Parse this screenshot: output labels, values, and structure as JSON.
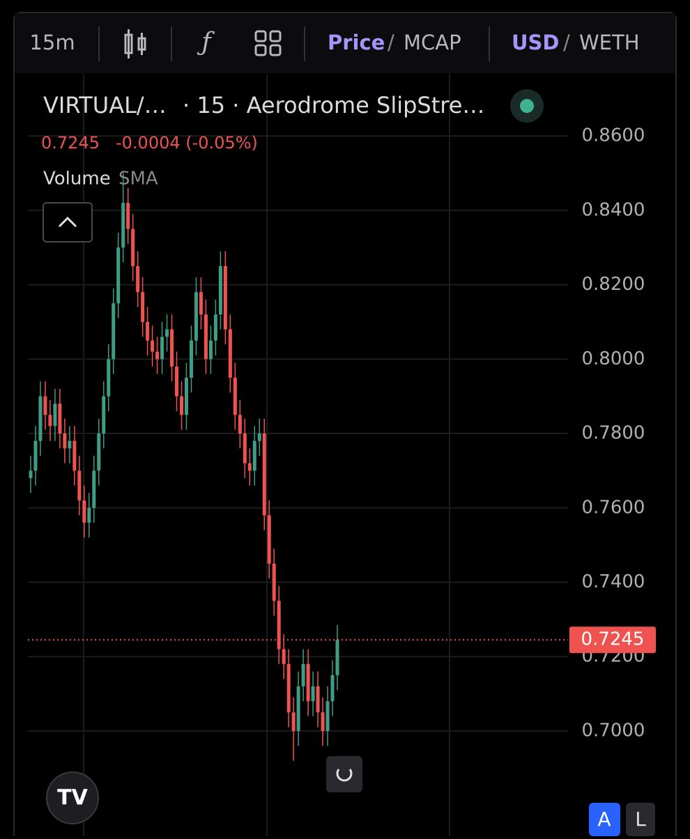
{
  "toolbar": {
    "interval": "15m",
    "price": "Price",
    "price_sep": "/",
    "mcap": "MCAP",
    "usd": "USD",
    "usd_sep": "/",
    "weth": "WETH"
  },
  "chart_data": {
    "type": "candlestick",
    "symbol": "VIRTUAL/…",
    "source": "· 15 · Aerodrome SlipStre…",
    "last": 0.7245,
    "change": "-0.0004 (-0.05%)",
    "indicator": "Volume",
    "indicator_param": "SMA",
    "up_color": "#3f9d86",
    "down_color": "#ef5350",
    "ylim": [
      0.6717,
      0.8767
    ],
    "yticks": [
      {
        "value": 0.86,
        "label": "0.8600"
      },
      {
        "value": 0.84,
        "label": "0.8400"
      },
      {
        "value": 0.82,
        "label": "0.8200"
      },
      {
        "value": 0.8,
        "label": "0.8000"
      },
      {
        "value": 0.78,
        "label": "0.7800"
      },
      {
        "value": 0.76,
        "label": "0.7600"
      },
      {
        "value": 0.74,
        "label": "0.7400"
      },
      {
        "value": 0.72,
        "label": "0.7200"
      },
      {
        "value": 0.7,
        "label": "0.7000"
      }
    ],
    "grid": true,
    "open": [
      0.768,
      0.77,
      0.778,
      0.79,
      0.785,
      0.782,
      0.788,
      0.78,
      0.776,
      0.778,
      0.77,
      0.762,
      0.756,
      0.76,
      0.77,
      0.78,
      0.79,
      0.8,
      0.815,
      0.83,
      0.842,
      0.835,
      0.825,
      0.818,
      0.81,
      0.805,
      0.802,
      0.8,
      0.806,
      0.808,
      0.798,
      0.79,
      0.785,
      0.795,
      0.805,
      0.818,
      0.812,
      0.8,
      0.805,
      0.812,
      0.825,
      0.808,
      0.795,
      0.785,
      0.78,
      0.772,
      0.77,
      0.778,
      0.78,
      0.758,
      0.745,
      0.735,
      0.722,
      0.718,
      0.705,
      0.7,
      0.712,
      0.718,
      0.708,
      0.712,
      0.705,
      0.7,
      0.708,
      0.715
    ],
    "high": [
      0.774,
      0.782,
      0.794,
      0.794,
      0.789,
      0.792,
      0.792,
      0.784,
      0.782,
      0.782,
      0.774,
      0.766,
      0.764,
      0.774,
      0.784,
      0.794,
      0.804,
      0.819,
      0.834,
      0.85,
      0.846,
      0.839,
      0.829,
      0.822,
      0.814,
      0.809,
      0.806,
      0.81,
      0.812,
      0.812,
      0.802,
      0.794,
      0.799,
      0.809,
      0.822,
      0.822,
      0.816,
      0.809,
      0.816,
      0.829,
      0.829,
      0.812,
      0.799,
      0.789,
      0.784,
      0.776,
      0.782,
      0.784,
      0.784,
      0.762,
      0.749,
      0.739,
      0.726,
      0.722,
      0.709,
      0.716,
      0.722,
      0.722,
      0.716,
      0.716,
      0.709,
      0.712,
      0.719,
      0.7285
    ],
    "low": [
      0.764,
      0.766,
      0.774,
      0.781,
      0.778,
      0.778,
      0.776,
      0.772,
      0.772,
      0.766,
      0.758,
      0.752,
      0.752,
      0.756,
      0.766,
      0.776,
      0.786,
      0.796,
      0.811,
      0.826,
      0.831,
      0.821,
      0.814,
      0.806,
      0.801,
      0.798,
      0.796,
      0.796,
      0.802,
      0.794,
      0.786,
      0.781,
      0.781,
      0.791,
      0.801,
      0.808,
      0.796,
      0.796,
      0.801,
      0.808,
      0.804,
      0.791,
      0.781,
      0.776,
      0.768,
      0.766,
      0.766,
      0.774,
      0.754,
      0.741,
      0.731,
      0.718,
      0.714,
      0.701,
      0.692,
      0.696,
      0.708,
      0.704,
      0.704,
      0.701,
      0.696,
      0.696,
      0.704,
      0.711
    ],
    "close": [
      0.77,
      0.778,
      0.79,
      0.785,
      0.782,
      0.788,
      0.78,
      0.776,
      0.778,
      0.77,
      0.762,
      0.756,
      0.76,
      0.77,
      0.78,
      0.79,
      0.8,
      0.815,
      0.83,
      0.842,
      0.835,
      0.825,
      0.818,
      0.81,
      0.805,
      0.802,
      0.8,
      0.806,
      0.808,
      0.798,
      0.79,
      0.785,
      0.795,
      0.805,
      0.818,
      0.812,
      0.8,
      0.805,
      0.812,
      0.825,
      0.808,
      0.795,
      0.785,
      0.78,
      0.772,
      0.77,
      0.778,
      0.78,
      0.758,
      0.745,
      0.735,
      0.722,
      0.718,
      0.705,
      0.7,
      0.712,
      0.718,
      0.708,
      0.712,
      0.705,
      0.7,
      0.708,
      0.715,
      0.7245
    ]
  },
  "buttons": {
    "auto": "A",
    "log": "L"
  }
}
